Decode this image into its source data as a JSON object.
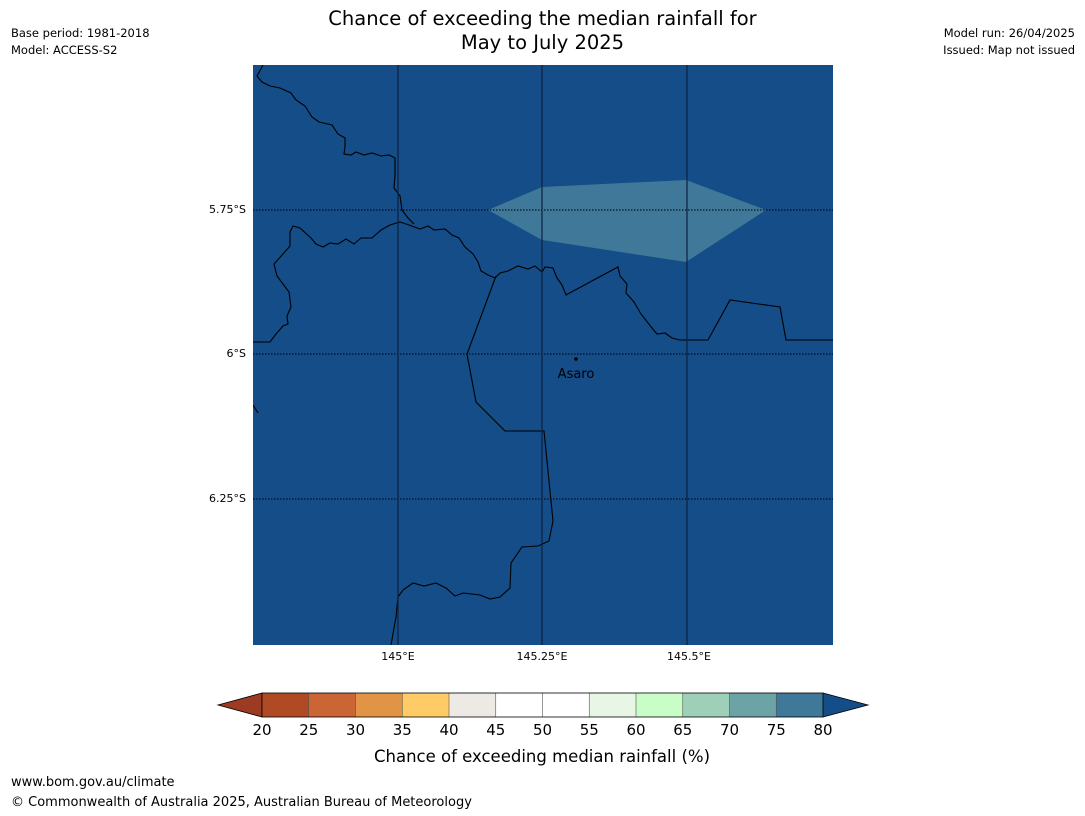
{
  "header": {
    "title_line1": "Chance of exceeding the median rainfall for",
    "title_line2": "May to July 2025",
    "base_period": "Base period: 1981-2018",
    "model": "Model: ACCESS-S2",
    "model_run": "Model run: 26/04/2025",
    "issued": "Issued: Map not issued"
  },
  "map": {
    "background_class": "80",
    "lat_labels": [
      "5.75°S",
      "6°S",
      "6.25°S"
    ],
    "lon_labels": [
      "145°E",
      "145.25°E",
      "145.5°E"
    ],
    "place": {
      "name": "Asaro"
    },
    "highlight_class": "75"
  },
  "colorbar": {
    "ticks": [
      "20",
      "25",
      "30",
      "35",
      "40",
      "45",
      "50",
      "55",
      "60",
      "65",
      "70",
      "75",
      "80"
    ],
    "colors": [
      "#b04a25",
      "#cc6535",
      "#e29446",
      "#fecb67",
      "#ede9e4",
      "#ffffff",
      "#ffffff",
      "#e8f6e6",
      "#c8fdc8",
      "#9ecfb8",
      "#6ba3a6",
      "#3f7898"
    ],
    "under_color": "#9c3a22",
    "over_color": "#144d87",
    "label": "Chance of exceeding median rainfall (%)"
  },
  "footer": {
    "url": "www.bom.gov.au/climate",
    "copyright": "© Commonwealth of Australia 2025, Australian Bureau of Meteorology"
  }
}
